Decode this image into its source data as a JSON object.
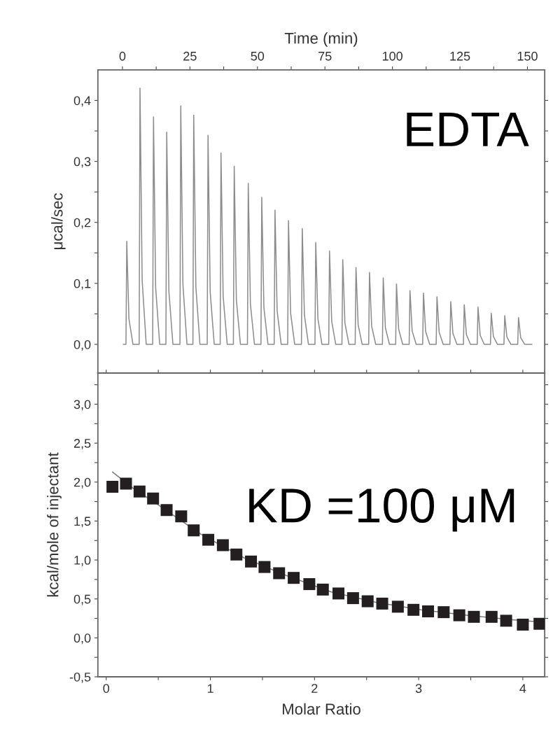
{
  "chart_data": [
    {
      "type": "line",
      "xlabel": "Time (min)",
      "ylabel": "μcal/sec",
      "color": "#8c8c8c",
      "annotations": [
        "EDTA"
      ],
      "xlim": [
        -9.1,
        156.4
      ],
      "ylim": [
        -0.047,
        0.45
      ],
      "xticks": [
        0,
        {
          "value": 12.5,
          "label": null
        },
        25,
        {
          "value": 37.5,
          "label": null
        },
        50,
        {
          "value": 62.5,
          "label": null
        },
        75,
        {
          "value": 87.5,
          "label": null
        },
        100,
        {
          "value": 112.5,
          "label": null
        },
        125,
        {
          "value": 137.5,
          "label": null
        },
        150
      ],
      "yticks": [
        {
          "value": 0.0,
          "label": "0,0"
        },
        {
          "value": 0.05,
          "label": null
        },
        {
          "value": 0.1,
          "label": "0,1"
        },
        {
          "value": 0.15,
          "label": null
        },
        {
          "value": 0.2,
          "label": "0,2"
        },
        {
          "value": 0.25,
          "label": null
        },
        {
          "value": 0.3,
          "label": "0,3"
        },
        {
          "value": 0.35,
          "label": null
        },
        {
          "value": 0.4,
          "label": "0,4"
        }
      ],
      "x": [
        0.3,
        1.3,
        1.6,
        2.4,
        3.9,
        6.2,
        6.5,
        7.3,
        8.8,
        11.2,
        11.5,
        12.3,
        13.8,
        16.1,
        16.4,
        17.2,
        18.7,
        21.3,
        21.6,
        22.4,
        23.9,
        26.1,
        26.4,
        27.2,
        28.7,
        31.4,
        31.7,
        32.5,
        34.0,
        36.2,
        36.5,
        37.3,
        38.8,
        41.1,
        41.4,
        42.2,
        43.7,
        46.3,
        46.6,
        47.4,
        48.9,
        51.3,
        51.6,
        52.4,
        53.9,
        56.2,
        56.5,
        57.3,
        58.8,
        61.2,
        61.5,
        62.3,
        63.8,
        66.3,
        66.6,
        67.4,
        68.9,
        71.3,
        71.6,
        72.4,
        73.9,
        76.4,
        76.7,
        77.5,
        79.0,
        81.3,
        81.6,
        82.4,
        83.9,
        86.2,
        86.5,
        87.3,
        88.8,
        91.2,
        91.5,
        92.3,
        93.8,
        96.3,
        96.6,
        97.4,
        98.9,
        101.2,
        101.5,
        102.3,
        103.8,
        106.2,
        106.5,
        107.3,
        108.8,
        111.2,
        111.5,
        112.3,
        113.8,
        116.2,
        116.5,
        117.3,
        118.8,
        121.3,
        121.6,
        122.4,
        123.9,
        126.3,
        126.6,
        127.4,
        128.9,
        131.4,
        131.7,
        132.5,
        134.0,
        136.3,
        136.6,
        137.4,
        138.9,
        141.3,
        141.6,
        142.4,
        143.9,
        146.4,
        146.7,
        147.5,
        149.0,
        151.7
      ],
      "values": [
        0,
        0,
        0.169,
        0.042,
        0,
        0,
        0.42,
        0.105,
        0,
        0,
        0.373,
        0.093,
        0,
        0,
        0.348,
        0.087,
        0,
        0,
        0.391,
        0.098,
        0,
        0,
        0.376,
        0.094,
        0,
        0,
        0.343,
        0.086,
        0,
        0,
        0.314,
        0.079,
        0,
        0,
        0.292,
        0.073,
        0,
        0,
        0.264,
        0.066,
        0,
        0,
        0.241,
        0.06,
        0,
        0,
        0.22,
        0.055,
        0,
        0,
        0.203,
        0.051,
        0,
        0,
        0.19,
        0.048,
        0,
        0,
        0.167,
        0.042,
        0,
        0,
        0.153,
        0.038,
        0,
        0,
        0.139,
        0.035,
        0,
        0,
        0.126,
        0.032,
        0,
        0,
        0.118,
        0.03,
        0,
        0,
        0.109,
        0.027,
        0,
        0,
        0.099,
        0.025,
        0,
        0,
        0.088,
        0.022,
        0,
        0,
        0.084,
        0.021,
        0,
        0,
        0.078,
        0.02,
        0,
        0,
        0.07,
        0.018,
        0,
        0,
        0.065,
        0.016,
        0,
        0,
        0.061,
        0.015,
        0,
        0,
        0.051,
        0.013,
        0,
        0,
        0.047,
        0.012,
        0,
        0,
        0.044,
        0.011,
        0,
        0
      ]
    },
    {
      "type": "scatter",
      "xlabel": "Molar Ratio",
      "ylabel": "kcal/mole of injectant",
      "annotations": [
        "KD =100 μM"
      ],
      "xlim": [
        -0.08,
        4.21
      ],
      "ylim": [
        -0.5,
        3.4
      ],
      "xticks": [
        0,
        {
          "value": 0.5,
          "label": null
        },
        1,
        {
          "value": 1.5,
          "label": null
        },
        2,
        {
          "value": 2.5,
          "label": null
        },
        3,
        {
          "value": 3.5,
          "label": null
        },
        4
      ],
      "yticks": [
        {
          "value": -0.5,
          "label": "-0,5"
        },
        {
          "value": -0.25,
          "label": null
        },
        {
          "value": 0.0,
          "label": "0,0"
        },
        {
          "value": 0.25,
          "label": null
        },
        {
          "value": 0.5,
          "label": "0,5"
        },
        {
          "value": 0.75,
          "label": null
        },
        {
          "value": 1.0,
          "label": "1,0"
        },
        {
          "value": 1.25,
          "label": null
        },
        {
          "value": 1.5,
          "label": "1,5"
        },
        {
          "value": 1.75,
          "label": null
        },
        {
          "value": 2.0,
          "label": "2,0"
        },
        {
          "value": 2.25,
          "label": null
        },
        {
          "value": 2.5,
          "label": "2,5"
        },
        {
          "value": 2.75,
          "label": null
        },
        {
          "value": 3.0,
          "label": "3,0"
        },
        {
          "value": 3.25,
          "label": null
        }
      ],
      "series": [
        {
          "type": "line",
          "color": "#7a7a7a",
          "marker": "none",
          "x": [
            0.06,
            0.25,
            0.52,
            0.91,
            1.32,
            1.73,
            2.16,
            2.58,
            3.02,
            3.46,
            3.92,
            4.2
          ],
          "values": [
            2.13,
            1.93,
            1.69,
            1.33,
            1.03,
            0.8,
            0.59,
            0.46,
            0.36,
            0.29,
            0.23,
            0.2
          ]
        },
        {
          "type": "scatter",
          "color": "#231f20",
          "marker": "square",
          "x": [
            0.06,
            0.19,
            0.32,
            0.45,
            0.58,
            0.72,
            0.84,
            0.98,
            1.12,
            1.25,
            1.39,
            1.52,
            1.66,
            1.8,
            1.95,
            2.08,
            2.23,
            2.37,
            2.51,
            2.65,
            2.8,
            2.95,
            3.09,
            3.24,
            3.39,
            3.53,
            3.7,
            3.84,
            4.0,
            4.16
          ],
          "values": [
            1.94,
            1.98,
            1.88,
            1.79,
            1.64,
            1.56,
            1.38,
            1.26,
            1.19,
            1.07,
            0.98,
            0.91,
            0.83,
            0.77,
            0.69,
            0.62,
            0.57,
            0.51,
            0.47,
            0.44,
            0.4,
            0.36,
            0.34,
            0.33,
            0.29,
            0.27,
            0.27,
            0.22,
            0.17,
            0.18
          ]
        }
      ]
    }
  ]
}
